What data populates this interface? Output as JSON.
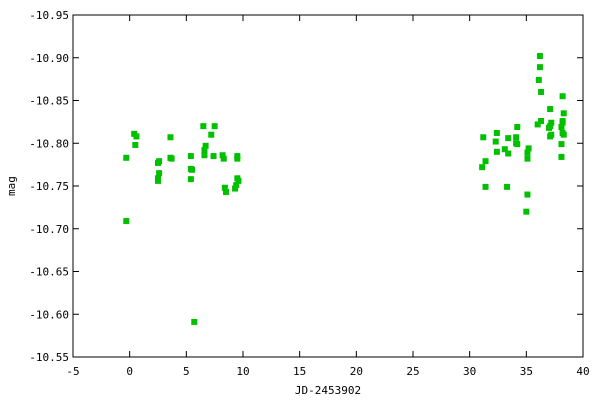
{
  "chart_data": {
    "type": "scatter",
    "title": "",
    "xlabel": "JD-2453902",
    "ylabel": "mag",
    "xlim": [
      -5,
      40
    ],
    "ylim": [
      -10.55,
      -10.95
    ],
    "y_inverted": true,
    "grid": false,
    "xticks": [
      -5,
      0,
      5,
      10,
      15,
      20,
      25,
      30,
      35,
      40
    ],
    "yticks": [
      -10.95,
      -10.9,
      -10.85,
      -10.8,
      -10.75,
      -10.7,
      -10.65,
      -10.6,
      -10.55
    ],
    "xtick_labels": [
      "-5",
      "0",
      "5",
      "10",
      "15",
      "20",
      "25",
      "30",
      "35",
      "40"
    ],
    "ytick_labels": [
      "-10.95",
      "-10.90",
      "-10.85",
      "-10.80",
      "-10.75",
      "-10.70",
      "-10.65",
      "-10.60",
      "-10.55"
    ],
    "marker_color": "#00c000",
    "marker": "square",
    "points": [
      [
        -0.3,
        -10.783
      ],
      [
        -0.3,
        -10.709
      ],
      [
        0.4,
        -10.811
      ],
      [
        0.6,
        -10.808
      ],
      [
        0.5,
        -10.798
      ],
      [
        2.5,
        -10.777
      ],
      [
        2.6,
        -10.779
      ],
      [
        2.6,
        -10.765
      ],
      [
        2.5,
        -10.759
      ],
      [
        2.5,
        -10.756
      ],
      [
        3.6,
        -10.807
      ],
      [
        3.6,
        -10.783
      ],
      [
        3.7,
        -10.782
      ],
      [
        6.5,
        -10.82
      ],
      [
        7.5,
        -10.82
      ],
      [
        7.2,
        -10.81
      ],
      [
        6.7,
        -10.797
      ],
      [
        6.6,
        -10.792
      ],
      [
        6.6,
        -10.786
      ],
      [
        5.4,
        -10.785
      ],
      [
        5.4,
        -10.77
      ],
      [
        5.5,
        -10.769
      ],
      [
        5.4,
        -10.758
      ],
      [
        7.4,
        -10.785
      ],
      [
        8.2,
        -10.786
      ],
      [
        8.3,
        -10.782
      ],
      [
        8.4,
        -10.748
      ],
      [
        8.5,
        -10.743
      ],
      [
        9.5,
        -10.785
      ],
      [
        9.5,
        -10.782
      ],
      [
        9.5,
        -10.759
      ],
      [
        9.6,
        -10.756
      ],
      [
        9.4,
        -10.751
      ],
      [
        9.3,
        -10.747
      ],
      [
        5.7,
        -10.591
      ],
      [
        36.2,
        -10.902
      ],
      [
        36.2,
        -10.889
      ],
      [
        36.1,
        -10.874
      ],
      [
        36.3,
        -10.86
      ],
      [
        38.2,
        -10.855
      ],
      [
        37.1,
        -10.84
      ],
      [
        38.3,
        -10.835
      ],
      [
        36.3,
        -10.826
      ],
      [
        36.0,
        -10.822
      ],
      [
        37.2,
        -10.824
      ],
      [
        37.1,
        -10.82
      ],
      [
        37.0,
        -10.818
      ],
      [
        38.2,
        -10.826
      ],
      [
        38.2,
        -10.824
      ],
      [
        38.1,
        -10.819
      ],
      [
        38.2,
        -10.812
      ],
      [
        38.3,
        -10.81
      ],
      [
        37.2,
        -10.81
      ],
      [
        37.1,
        -10.808
      ],
      [
        38.1,
        -10.799
      ],
      [
        38.1,
        -10.784
      ],
      [
        34.2,
        -10.819
      ],
      [
        34.1,
        -10.807
      ],
      [
        34.1,
        -10.8
      ],
      [
        34.2,
        -10.799
      ],
      [
        33.4,
        -10.806
      ],
      [
        33.4,
        -10.788
      ],
      [
        33.1,
        -10.793
      ],
      [
        32.4,
        -10.812
      ],
      [
        32.3,
        -10.802
      ],
      [
        32.4,
        -10.79
      ],
      [
        31.2,
        -10.807
      ],
      [
        31.4,
        -10.779
      ],
      [
        31.1,
        -10.772
      ],
      [
        31.4,
        -10.749
      ],
      [
        33.3,
        -10.749
      ],
      [
        35.2,
        -10.794
      ],
      [
        35.1,
        -10.789
      ],
      [
        35.1,
        -10.782
      ],
      [
        35.1,
        -10.74
      ],
      [
        35.0,
        -10.72
      ]
    ]
  }
}
